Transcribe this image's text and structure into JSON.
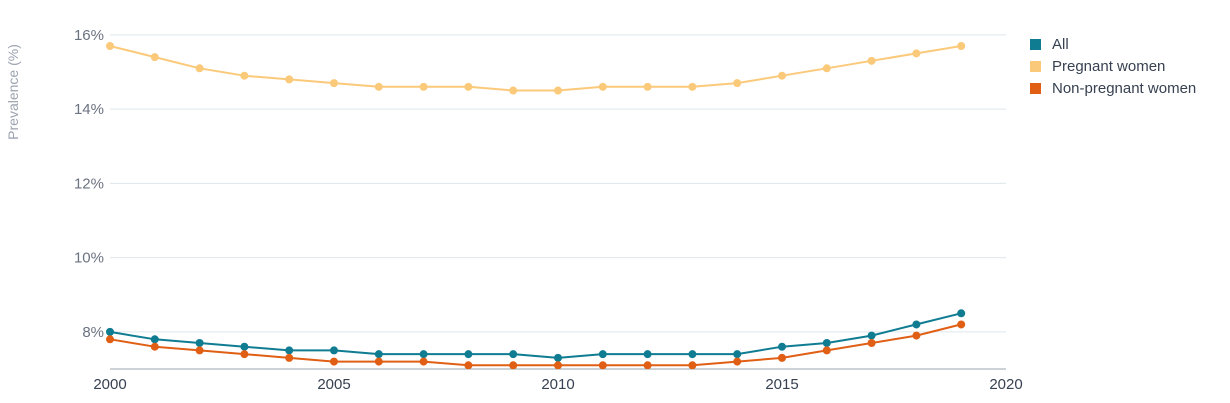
{
  "chart_data": {
    "type": "line",
    "title": "",
    "xlabel": "",
    "ylabel": "Prevalence (%)",
    "xlim": [
      2000,
      2020
    ],
    "ylim": [
      7,
      16.4
    ],
    "x_ticks": [
      {
        "value": 2000,
        "label": "2000"
      },
      {
        "value": 2005,
        "label": "2005"
      },
      {
        "value": 2010,
        "label": "2010"
      },
      {
        "value": 2015,
        "label": "2015"
      },
      {
        "value": 2020,
        "label": "2020"
      }
    ],
    "y_ticks": [
      {
        "value": 8,
        "label": "8%"
      },
      {
        "value": 10,
        "label": "10%"
      },
      {
        "value": 12,
        "label": "12%"
      },
      {
        "value": 14,
        "label": "14%"
      },
      {
        "value": 16,
        "label": "16%"
      }
    ],
    "grid": true,
    "legend_position": "top-right",
    "x": [
      2000,
      2001,
      2002,
      2003,
      2004,
      2005,
      2006,
      2007,
      2008,
      2009,
      2010,
      2011,
      2012,
      2013,
      2014,
      2015,
      2016,
      2017,
      2018,
      2019
    ],
    "series": [
      {
        "name": "All",
        "color": "#0f7c92",
        "values": [
          8.0,
          7.8,
          7.7,
          7.6,
          7.5,
          7.5,
          7.4,
          7.4,
          7.4,
          7.4,
          7.3,
          7.4,
          7.4,
          7.4,
          7.4,
          7.6,
          7.7,
          7.9,
          8.2,
          8.5
        ]
      },
      {
        "name": "Pregnant women",
        "color": "#fbc97a",
        "values": [
          15.7,
          15.4,
          15.1,
          14.9,
          14.8,
          14.7,
          14.6,
          14.6,
          14.6,
          14.5,
          14.5,
          14.6,
          14.6,
          14.6,
          14.7,
          14.9,
          15.1,
          15.3,
          15.5,
          15.7
        ]
      },
      {
        "name": "Non-pregnant women",
        "color": "#e05f14",
        "values": [
          7.8,
          7.6,
          7.5,
          7.4,
          7.3,
          7.2,
          7.2,
          7.2,
          7.1,
          7.1,
          7.1,
          7.1,
          7.1,
          7.1,
          7.2,
          7.3,
          7.5,
          7.7,
          7.9,
          8.2
        ]
      }
    ]
  }
}
